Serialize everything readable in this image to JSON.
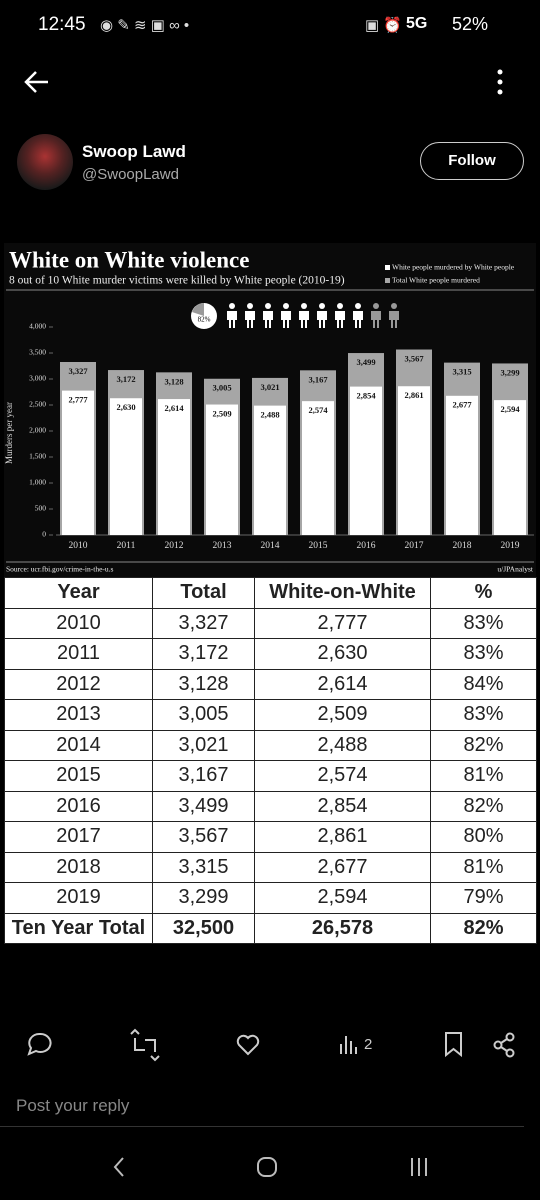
{
  "status_bar": {
    "time": "12:45",
    "network": "5G",
    "battery": "52%"
  },
  "profile": {
    "name": "Swoop Lawd",
    "handle": "@SwoopLawd",
    "follow_button": "Follow"
  },
  "chart_data": {
    "type": "bar",
    "title": "White on White violence",
    "subtitle": "8 out of 10 White murder victims were killed by White people (2010-19)",
    "y_label": "Murders per year",
    "icon_annotation": "82%",
    "categories": [
      "2010",
      "2011",
      "2012",
      "2013",
      "2014",
      "2015",
      "2016",
      "2017",
      "2018",
      "2019"
    ],
    "series": [
      {
        "name": "White people murdered by White people",
        "color": "#ffffff",
        "values": [
          2777,
          2630,
          2614,
          2509,
          2488,
          2574,
          2854,
          2861,
          2677,
          2594
        ],
        "value_labels": [
          "2,777",
          "2,630",
          "2,614",
          "2,509",
          "2,488",
          "2,574",
          "2,854",
          "2,861",
          "2,677",
          "2,594"
        ]
      },
      {
        "name": "Total White people murdered",
        "color": "#a6a6a6",
        "values": [
          3327,
          3172,
          3128,
          3005,
          3021,
          3167,
          3499,
          3567,
          3315,
          3299
        ],
        "value_labels": [
          "3,327",
          "3,172",
          "3,128",
          "3,005",
          "3,021",
          "3,167",
          "3,499",
          "3,567",
          "3,315",
          "3,299"
        ]
      }
    ],
    "ylim": [
      0,
      4000
    ],
    "yticks": [
      0,
      500,
      {
        "value": 1000,
        "label": "1,000"
      },
      {
        "value": 1500,
        "label": "1,500"
      },
      {
        "value": 2000,
        "label": "2,000"
      },
      {
        "value": 2500,
        "label": "2,500"
      },
      {
        "value": 3000,
        "label": "3,000"
      },
      {
        "value": 3500,
        "label": "3,500"
      },
      {
        "value": 4000,
        "label": "4,000"
      }
    ],
    "grid": false,
    "legend": "top-right",
    "source": "Source: ucr.fbi.gov/crime-in-the-u.s",
    "credit": "u/JPAnalyst"
  },
  "table": {
    "header": [
      "Year",
      "Total",
      "White-on-White",
      "%"
    ],
    "rows": [
      [
        "2010",
        "3,327",
        "2,777",
        "83%"
      ],
      [
        "2011",
        "3,172",
        "2,630",
        "83%"
      ],
      [
        "2012",
        "3,128",
        "2,614",
        "84%"
      ],
      [
        "2013",
        "3,005",
        "2,509",
        "83%"
      ],
      [
        "2014",
        "3,021",
        "2,488",
        "82%"
      ],
      [
        "2015",
        "3,167",
        "2,574",
        "81%"
      ],
      [
        "2016",
        "3,499",
        "2,854",
        "82%"
      ],
      [
        "2017",
        "3,567",
        "2,861",
        "80%"
      ],
      [
        "2018",
        "3,315",
        "2,677",
        "81%"
      ],
      [
        "2019",
        "3,299",
        "2,594",
        "79%"
      ]
    ],
    "total_row": [
      "Ten Year Total",
      "32,500",
      "26,578",
      "82%"
    ]
  },
  "actions": {
    "views": "2"
  },
  "reply": {
    "placeholder": "Post your reply"
  }
}
